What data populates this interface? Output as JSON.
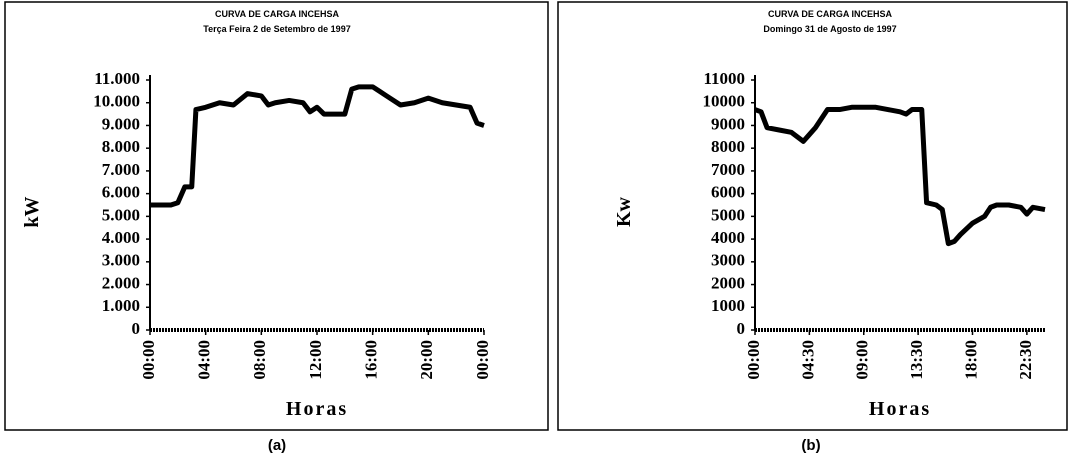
{
  "chart_data": [
    {
      "type": "line",
      "title": "CURVA DE CARGA INCEHSA",
      "subtitle": "Terça Feira 2 de Setembro de 1997",
      "ylabel": "kW",
      "xlabel": "Horas",
      "caption": "(a)",
      "color": "#000000",
      "x": [
        0,
        0.5,
        1,
        1.5,
        2,
        2.5,
        3,
        3.3,
        4,
        5,
        6,
        7,
        8,
        8.5,
        9,
        10,
        11,
        11.5,
        12,
        12.5,
        13,
        14,
        14.5,
        15,
        16,
        17,
        18,
        19,
        20,
        21,
        22,
        23,
        23.5,
        24
      ],
      "values": [
        5500,
        5500,
        5500,
        5500,
        5600,
        6300,
        6300,
        9700,
        9800,
        10000,
        9900,
        10400,
        10300,
        9900,
        10000,
        10100,
        10000,
        9600,
        9800,
        9500,
        9500,
        9500,
        10600,
        10700,
        10700,
        10300,
        9900,
        10000,
        10200,
        10000,
        9900,
        9800,
        9100,
        9000
      ],
      "xlim": [
        0,
        24
      ],
      "xticks": [
        {
          "value": 0,
          "label": "00:00"
        },
        {
          "value": 4,
          "label": "04:00"
        },
        {
          "value": 8,
          "label": "08:00"
        },
        {
          "value": 12,
          "label": "12:00"
        },
        {
          "value": 16,
          "label": "16:00"
        },
        {
          "value": 20,
          "label": "20:00"
        },
        {
          "value": 24,
          "label": "00:00"
        }
      ],
      "ylim": [
        0,
        11000
      ],
      "yticks": [
        0,
        {
          "value": 1000,
          "label": "1.000"
        },
        {
          "value": 2000,
          "label": "2.000"
        },
        {
          "value": 3000,
          "label": "3.000"
        },
        {
          "value": 4000,
          "label": "4.000"
        },
        {
          "value": 5000,
          "label": "5.000"
        },
        {
          "value": 6000,
          "label": "6.000"
        },
        {
          "value": 7000,
          "label": "7.000"
        },
        {
          "value": 8000,
          "label": "8.000"
        },
        {
          "value": 9000,
          "label": "9.000"
        },
        {
          "value": 10000,
          "label": "10.000"
        },
        {
          "value": 11000,
          "label": "11.000"
        }
      ]
    },
    {
      "type": "line",
      "title": "CURVA DE CARGA INCEHSA",
      "subtitle": "Domingo 31 de Agosto de 1997",
      "ylabel": "Kw",
      "xlabel": "Horas",
      "caption": "(b)",
      "color": "#000000",
      "x": [
        0,
        0.5,
        1,
        2,
        3,
        4,
        4.5,
        5,
        6,
        7,
        8,
        9,
        10,
        11,
        12,
        12.5,
        13,
        13.8,
        14.2,
        15,
        15.5,
        16,
        16.5,
        17,
        18,
        19,
        19.5,
        20,
        21,
        22,
        22.5,
        23,
        24
      ],
      "values": [
        9700,
        9600,
        8900,
        8800,
        8700,
        8300,
        8600,
        8900,
        9700,
        9700,
        9800,
        9800,
        9800,
        9700,
        9600,
        9500,
        9700,
        9700,
        5600,
        5500,
        5300,
        3800,
        3900,
        4200,
        4700,
        5000,
        5400,
        5500,
        5500,
        5400,
        5100,
        5400,
        5300
      ],
      "xlim": [
        0,
        24
      ],
      "xticks": [
        {
          "value": 0,
          "label": "00:00"
        },
        {
          "value": 4.5,
          "label": "04:30"
        },
        {
          "value": 9,
          "label": "09:00"
        },
        {
          "value": 13.5,
          "label": "13:30"
        },
        {
          "value": 18,
          "label": "18:00"
        },
        {
          "value": 22.5,
          "label": "22:30"
        }
      ],
      "ylim": [
        0,
        11000
      ],
      "yticks": [
        0,
        1000,
        2000,
        3000,
        4000,
        5000,
        6000,
        7000,
        8000,
        9000,
        10000,
        11000
      ]
    }
  ]
}
